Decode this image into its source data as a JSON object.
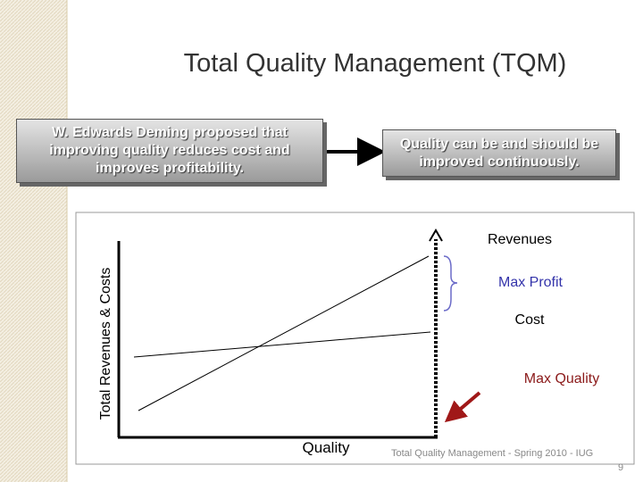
{
  "title": "Total Quality Management (TQM)",
  "box_left": "W. Edwards Deming proposed that improving quality reduces cost and improves profitability.",
  "box_right": "Quality can be and should be improved continuously.",
  "diagram": {
    "y_label": "Total Revenues & Costs",
    "x_label": "Quality",
    "labels": {
      "revenues": "Revenues",
      "max_profit": "Max Profit",
      "cost": "Cost",
      "max_quality": "Max Quality"
    }
  },
  "footer": {
    "text": "Total Quality Management - Spring 2010 - IUG",
    "page": "9"
  }
}
